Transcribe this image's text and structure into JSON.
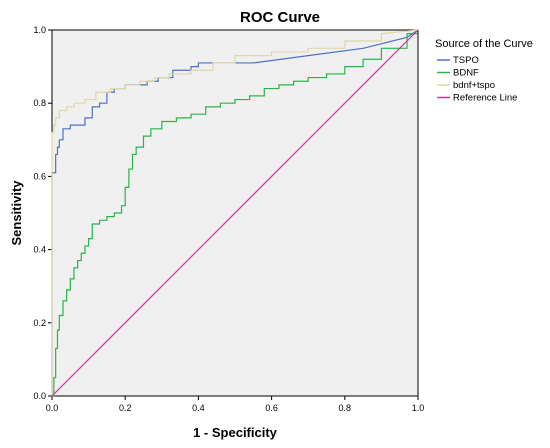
{
  "chart_data": {
    "type": "line",
    "title": "ROC Curve",
    "xlabel": "1 - Specificity",
    "ylabel": "Sensitivity",
    "xlim": [
      0,
      1
    ],
    "ylim": [
      0,
      1
    ],
    "x_ticks": [
      "0.0",
      "0.2",
      "0.4",
      "0.6",
      "0.8",
      "1.0"
    ],
    "y_ticks": [
      "0.0",
      "0.2",
      "0.4",
      "0.6",
      "0.8",
      "1.0"
    ],
    "plot_background": "#f0f0f0",
    "grid": false,
    "legend": {
      "title": "Source of the Curve",
      "placement": "right"
    },
    "series": [
      {
        "name": "TSPO",
        "color": "#4a72c4",
        "x": [
          0,
          0,
          0.01,
          0.01,
          0.015,
          0.015,
          0.02,
          0.02,
          0.03,
          0.03,
          0.05,
          0.05,
          0.09,
          0.09,
          0.11,
          0.11,
          0.13,
          0.13,
          0.15,
          0.15,
          0.17,
          0.17,
          0.2,
          0.2,
          0.26,
          0.26,
          0.29,
          0.29,
          0.33,
          0.33,
          0.38,
          0.38,
          0.4,
          0.4,
          0.55,
          0.7,
          0.85,
          0.97,
          1.0
        ],
        "y": [
          0,
          0.61,
          0.61,
          0.66,
          0.66,
          0.68,
          0.68,
          0.7,
          0.7,
          0.73,
          0.73,
          0.74,
          0.74,
          0.76,
          0.76,
          0.79,
          0.79,
          0.8,
          0.8,
          0.83,
          0.83,
          0.84,
          0.84,
          0.85,
          0.85,
          0.86,
          0.86,
          0.87,
          0.87,
          0.89,
          0.89,
          0.9,
          0.9,
          0.91,
          0.91,
          0.93,
          0.95,
          0.98,
          1.0
        ]
      },
      {
        "name": "BDNF",
        "color": "#28b44a",
        "x": [
          0,
          0.005,
          0.005,
          0.01,
          0.01,
          0.015,
          0.015,
          0.02,
          0.02,
          0.03,
          0.03,
          0.04,
          0.04,
          0.05,
          0.05,
          0.06,
          0.06,
          0.07,
          0.07,
          0.08,
          0.08,
          0.09,
          0.09,
          0.1,
          0.1,
          0.11,
          0.11,
          0.13,
          0.13,
          0.15,
          0.15,
          0.17,
          0.17,
          0.19,
          0.19,
          0.2,
          0.2,
          0.21,
          0.21,
          0.22,
          0.22,
          0.23,
          0.23,
          0.25,
          0.25,
          0.27,
          0.27,
          0.3,
          0.3,
          0.34,
          0.34,
          0.38,
          0.38,
          0.42,
          0.42,
          0.46,
          0.46,
          0.5,
          0.5,
          0.54,
          0.54,
          0.58,
          0.58,
          0.62,
          0.62,
          0.66,
          0.66,
          0.7,
          0.7,
          0.75,
          0.75,
          0.8,
          0.8,
          0.85,
          0.85,
          0.9,
          0.9,
          0.97,
          0.97,
          1.0
        ],
        "y": [
          0,
          0,
          0.05,
          0.05,
          0.13,
          0.13,
          0.18,
          0.18,
          0.22,
          0.22,
          0.26,
          0.26,
          0.29,
          0.29,
          0.32,
          0.32,
          0.35,
          0.35,
          0.37,
          0.37,
          0.39,
          0.39,
          0.41,
          0.41,
          0.43,
          0.43,
          0.47,
          0.47,
          0.48,
          0.48,
          0.49,
          0.49,
          0.5,
          0.5,
          0.52,
          0.52,
          0.57,
          0.57,
          0.62,
          0.62,
          0.66,
          0.66,
          0.68,
          0.68,
          0.71,
          0.71,
          0.73,
          0.73,
          0.75,
          0.75,
          0.76,
          0.76,
          0.77,
          0.77,
          0.79,
          0.79,
          0.8,
          0.8,
          0.81,
          0.81,
          0.82,
          0.82,
          0.84,
          0.84,
          0.85,
          0.85,
          0.86,
          0.86,
          0.87,
          0.87,
          0.88,
          0.88,
          0.9,
          0.9,
          0.92,
          0.92,
          0.95,
          0.95,
          0.99,
          0.99
        ]
      },
      {
        "name": "bdnf+tspo",
        "color": "#e0d7a8",
        "x": [
          0,
          0,
          0.005,
          0.005,
          0.01,
          0.01,
          0.02,
          0.02,
          0.04,
          0.04,
          0.06,
          0.06,
          0.09,
          0.09,
          0.12,
          0.12,
          0.16,
          0.16,
          0.2,
          0.2,
          0.24,
          0.24,
          0.28,
          0.28,
          0.32,
          0.32,
          0.38,
          0.38,
          0.44,
          0.44,
          0.5,
          0.5,
          0.6,
          0.6,
          0.7,
          0.7,
          0.8,
          0.8,
          0.9,
          0.9,
          1.0
        ],
        "y": [
          0,
          0.72,
          0.72,
          0.74,
          0.74,
          0.76,
          0.76,
          0.78,
          0.78,
          0.79,
          0.79,
          0.8,
          0.8,
          0.81,
          0.81,
          0.83,
          0.83,
          0.84,
          0.84,
          0.85,
          0.85,
          0.86,
          0.86,
          0.87,
          0.87,
          0.88,
          0.88,
          0.89,
          0.89,
          0.91,
          0.91,
          0.93,
          0.93,
          0.94,
          0.94,
          0.95,
          0.95,
          0.97,
          0.97,
          0.99,
          1.0
        ]
      },
      {
        "name": "Reference Line",
        "color": "#c8379b",
        "x": [
          0,
          1
        ],
        "y": [
          0,
          1
        ]
      }
    ]
  }
}
